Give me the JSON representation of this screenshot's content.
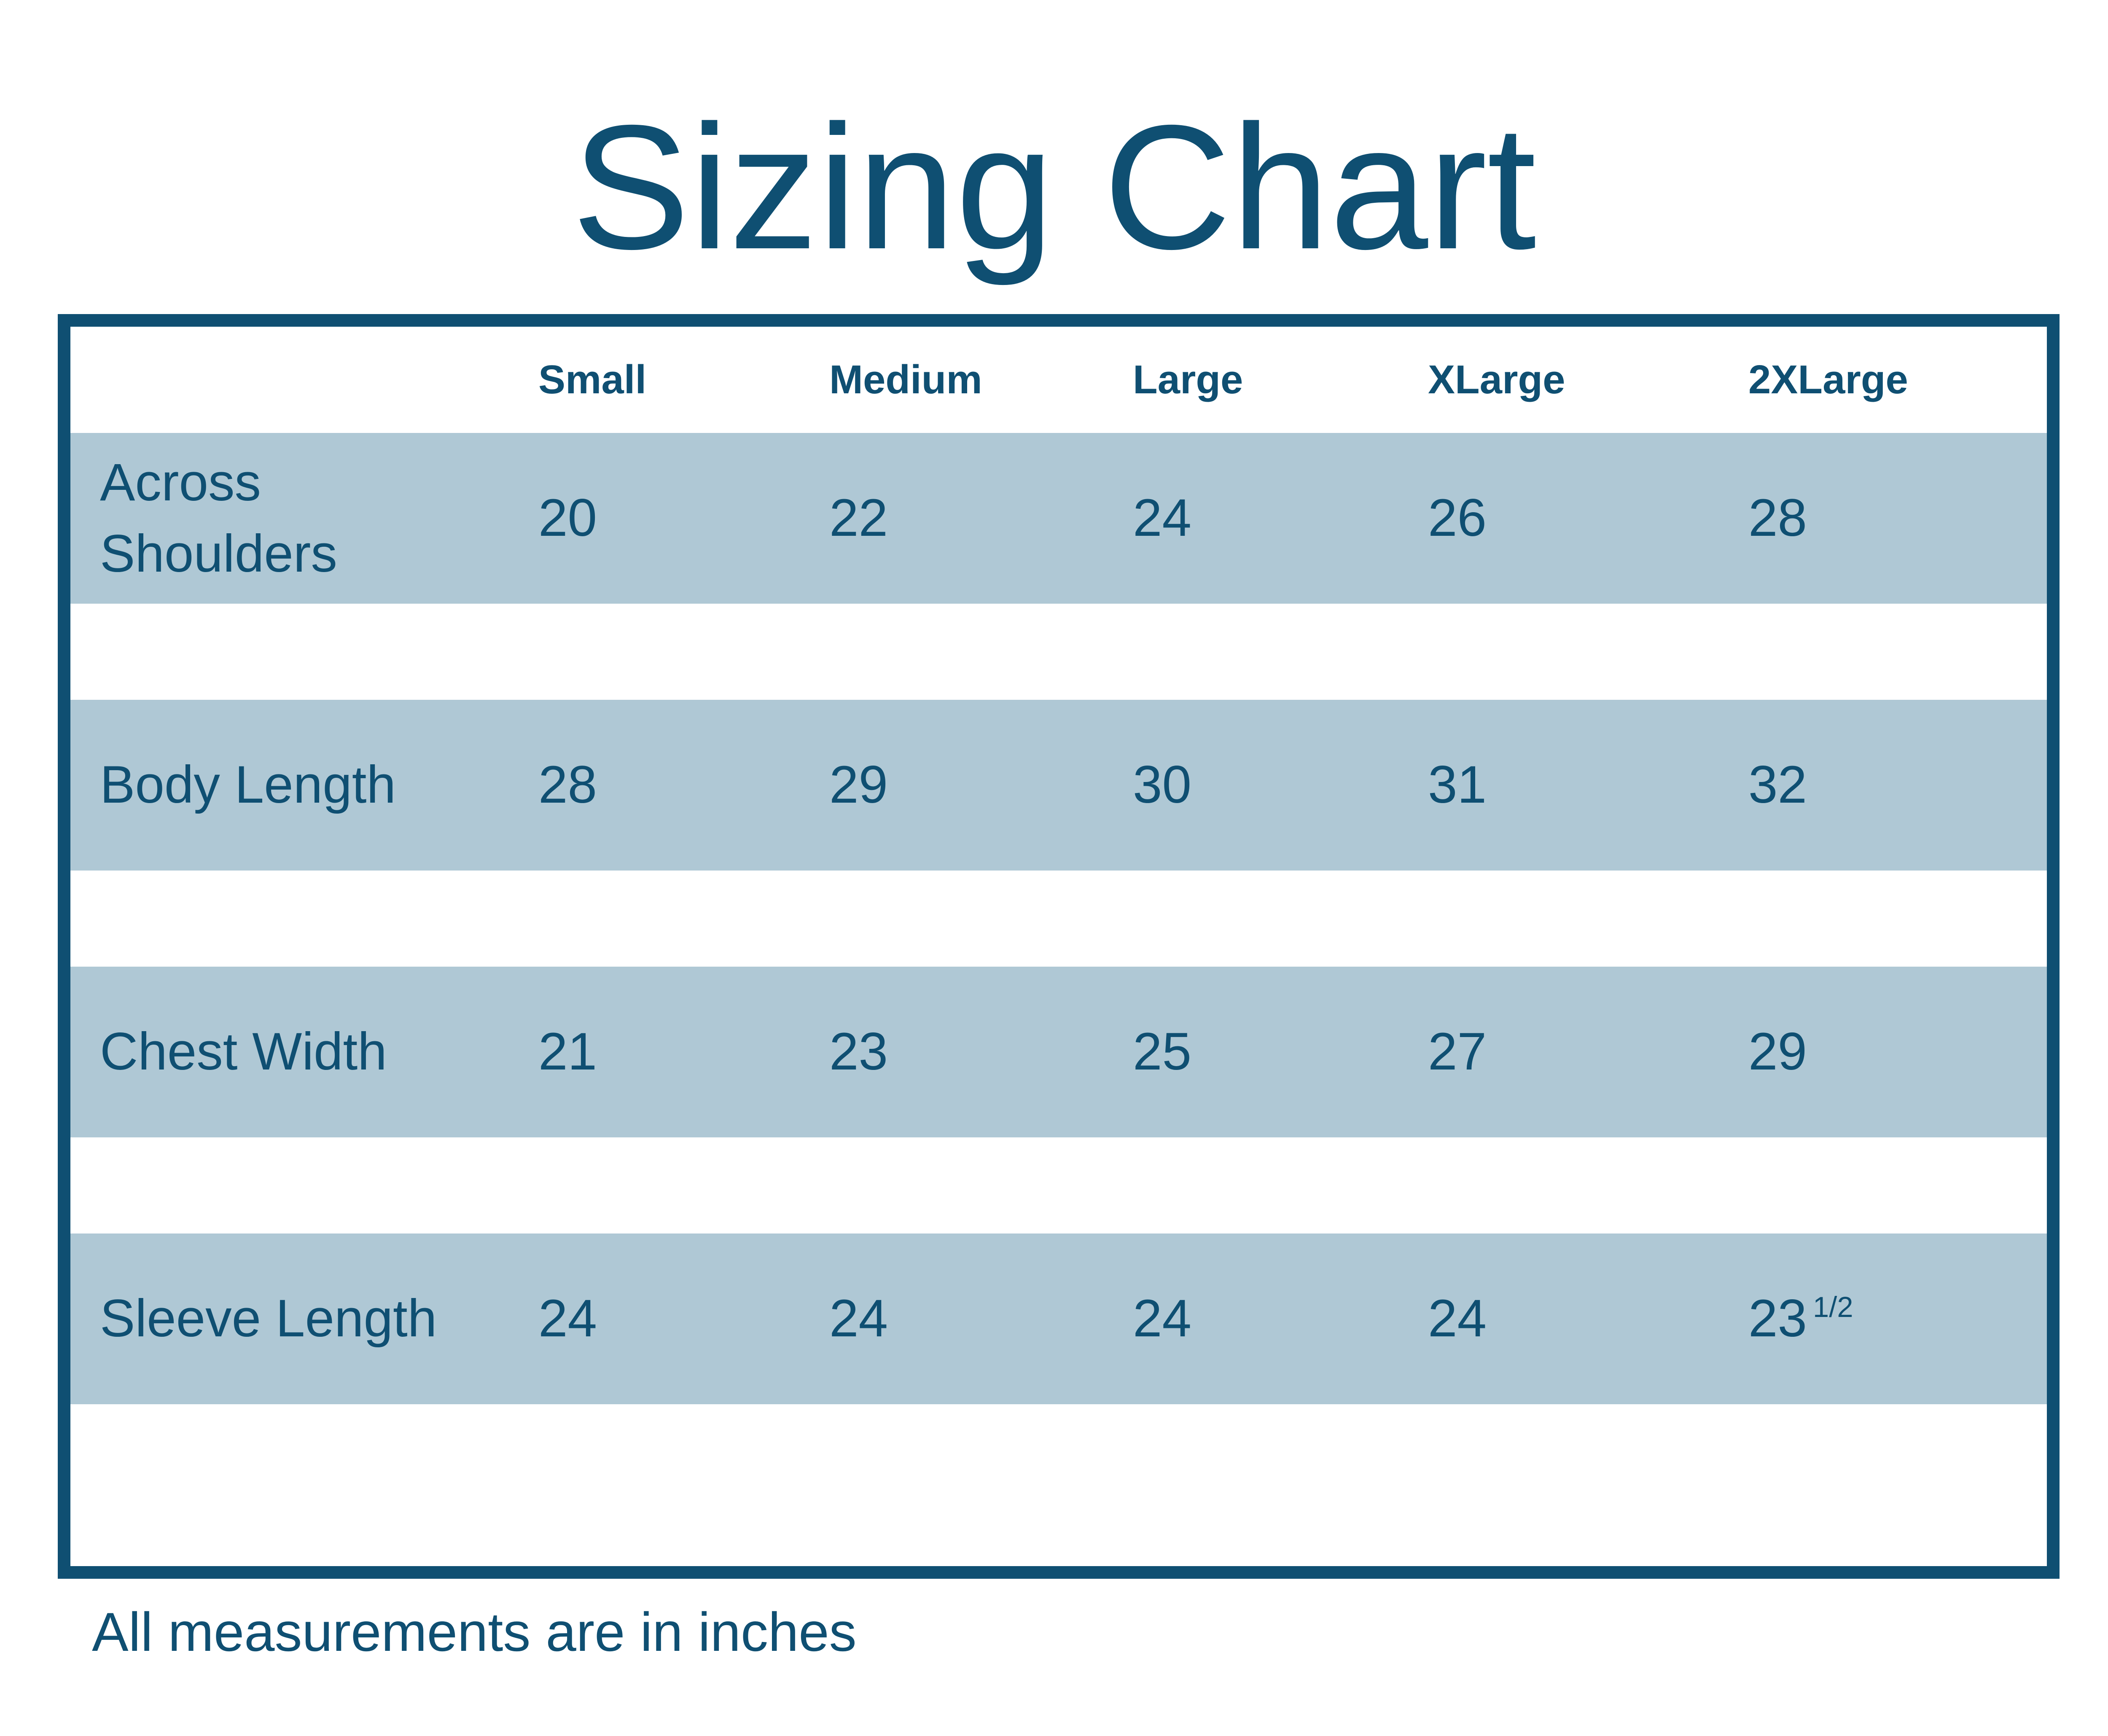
{
  "title": "Sizing Chart",
  "footer_note": "All measurements are in inches",
  "colors": {
    "dark_blue": "#0F4F72",
    "row_blue": "#AFC8D5",
    "background": "#FFFFFF"
  },
  "table": {
    "headers": [
      "",
      "Small",
      "Medium",
      "Large",
      "XLarge",
      "2XLarge"
    ],
    "rows": [
      {
        "label": "Across Shoulders",
        "values": [
          {
            "main": "20",
            "sup": ""
          },
          {
            "main": "22",
            "sup": ""
          },
          {
            "main": "24",
            "sup": ""
          },
          {
            "main": "26",
            "sup": ""
          },
          {
            "main": "28",
            "sup": ""
          }
        ]
      },
      {
        "label": "Body Length",
        "values": [
          {
            "main": "28",
            "sup": ""
          },
          {
            "main": "29",
            "sup": ""
          },
          {
            "main": "30",
            "sup": ""
          },
          {
            "main": "31",
            "sup": ""
          },
          {
            "main": "32",
            "sup": ""
          }
        ]
      },
      {
        "label": "Chest Width",
        "values": [
          {
            "main": "21",
            "sup": ""
          },
          {
            "main": "23",
            "sup": ""
          },
          {
            "main": "25",
            "sup": ""
          },
          {
            "main": "27",
            "sup": ""
          },
          {
            "main": "29",
            "sup": ""
          }
        ]
      },
      {
        "label": "Sleeve Length",
        "values": [
          {
            "main": "24",
            "sup": ""
          },
          {
            "main": "24",
            "sup": ""
          },
          {
            "main": "24",
            "sup": ""
          },
          {
            "main": "24",
            "sup": ""
          },
          {
            "main": "23",
            "sup": "1/2"
          }
        ]
      }
    ]
  },
  "chart_data": {
    "type": "table",
    "title": "Sizing Chart",
    "columns": [
      "Small",
      "Medium",
      "Large",
      "XLarge",
      "2XLarge"
    ],
    "rows": [
      {
        "label": "Across Shoulders",
        "values": [
          20,
          22,
          24,
          26,
          28
        ]
      },
      {
        "label": "Body Length",
        "values": [
          28,
          29,
          30,
          31,
          32
        ]
      },
      {
        "label": "Chest Width",
        "values": [
          21,
          23,
          25,
          27,
          29
        ]
      },
      {
        "label": "Sleeve Length",
        "values": [
          24,
          24,
          24,
          24,
          23.5
        ]
      }
    ],
    "note": "All measurements are in inches",
    "units": "inches"
  }
}
